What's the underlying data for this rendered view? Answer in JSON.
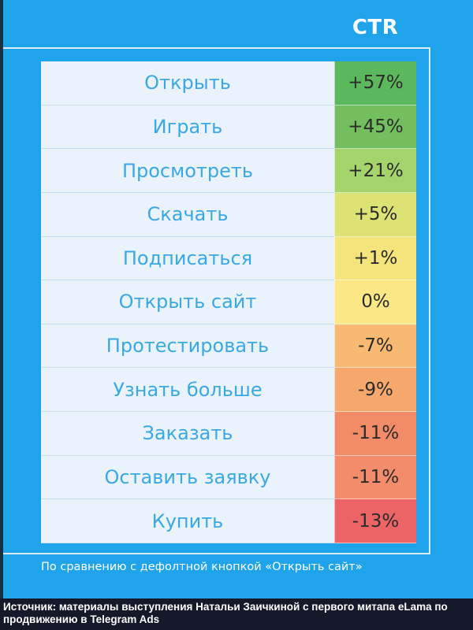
{
  "chart_data": {
    "type": "table",
    "column_header": "CTR",
    "rows": [
      {
        "label": "Открыть",
        "value_label": "+57%",
        "value": 57,
        "color": "#5cb85c"
      },
      {
        "label": "Играть",
        "value_label": "+45%",
        "value": 45,
        "color": "#73be5f"
      },
      {
        "label": "Просмотреть",
        "value_label": "+21%",
        "value": 21,
        "color": "#a5d36c"
      },
      {
        "label": "Скачать",
        "value_label": "+5%",
        "value": 5,
        "color": "#dde274"
      },
      {
        "label": "Подписаться",
        "value_label": "+1%",
        "value": 1,
        "color": "#f3e57b"
      },
      {
        "label": "Открыть сайт",
        "value_label": "0%",
        "value": 0,
        "color": "#fbe785"
      },
      {
        "label": "Протестировать",
        "value_label": "-7%",
        "value": -7,
        "color": "#f8b973"
      },
      {
        "label": "Узнать больше",
        "value_label": "-9%",
        "value": -9,
        "color": "#f7a86c"
      },
      {
        "label": "Заказать",
        "value_label": "-11%",
        "value": -11,
        "color": "#f28b67"
      },
      {
        "label": "Оставить заявку",
        "value_label": "-11%",
        "value": -11,
        "color": "#f28c6a"
      },
      {
        "label": "Купить",
        "value_label": "-13%",
        "value": -13,
        "color": "#ec6466"
      }
    ]
  },
  "footnote": "По сравнению с дефолтной кнопкой «Открыть сайт»",
  "source": "Источник: материалы выступления Натальи Заичкиной с первого митапа eLama по продвижению в Telegram Ads"
}
